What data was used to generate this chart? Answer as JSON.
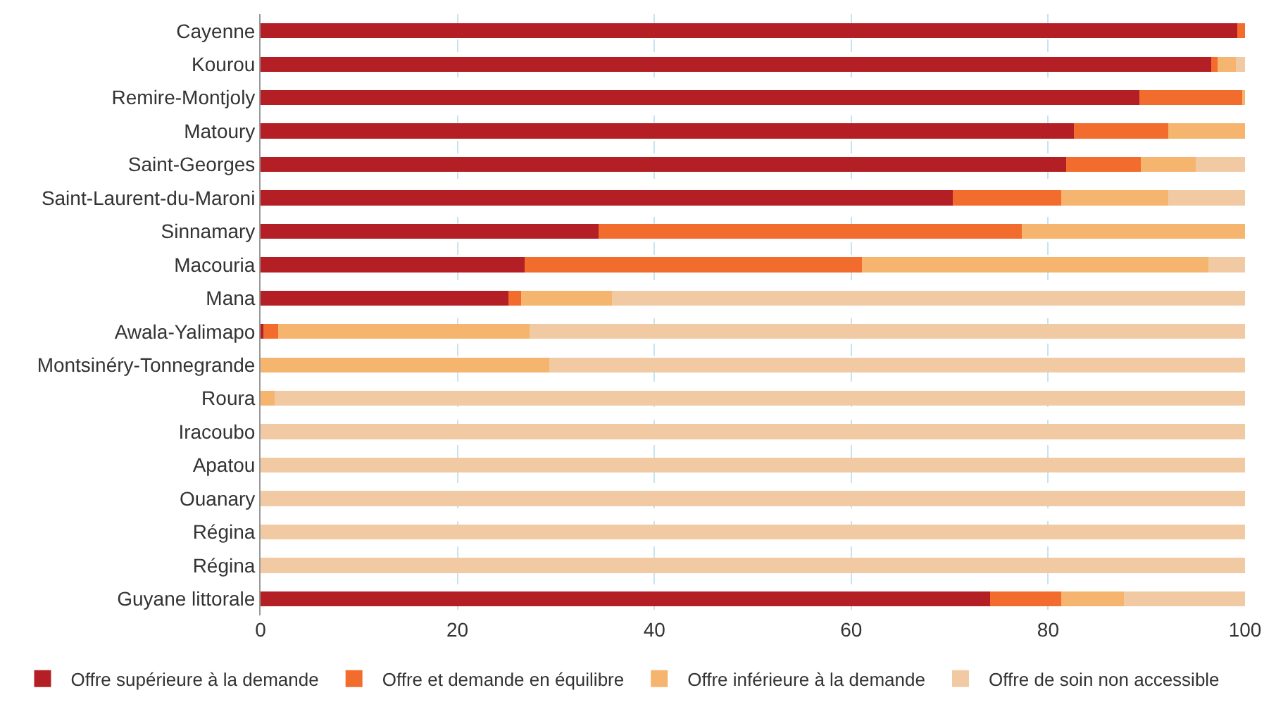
{
  "chart_data": {
    "type": "bar",
    "orientation": "horizontal",
    "stacked": true,
    "categories": [
      "Cayenne",
      "Kourou",
      "Remire-Montjoly",
      "Matoury",
      "Saint-Georges",
      "Saint-Laurent-du-Maroni",
      "Sinnamary",
      "Macouria",
      "Mana",
      "Awala-Yalimapo",
      "Montsinéry-Tonnegrande",
      "Roura",
      "Iracoubo",
      "Apatou",
      "Ouanary",
      "Régina",
      "Régina",
      "Guyane littorale"
    ],
    "series": [
      {
        "name": "Offre supérieure à la demande",
        "color": "#b31f24",
        "values": [
          99.2,
          96.6,
          89.3,
          82.6,
          81.8,
          70.3,
          34.3,
          26.8,
          25.2,
          0.3,
          0,
          0,
          0,
          0,
          0,
          0,
          0,
          74.1
        ]
      },
      {
        "name": "Offre et demande en équilibre",
        "color": "#f26c2d",
        "values": [
          0.8,
          0.6,
          10.4,
          9.6,
          7.6,
          11.0,
          43.0,
          34.3,
          1.3,
          1.5,
          0,
          0,
          0,
          0,
          0,
          0,
          0,
          7.2
        ]
      },
      {
        "name": "Offre inférieure à la demande",
        "color": "#f5b56e",
        "values": [
          0,
          1.9,
          0.3,
          7.8,
          5.6,
          10.9,
          22.7,
          35.2,
          9.2,
          25.5,
          29.3,
          1.4,
          0,
          0,
          0,
          0,
          0,
          6.4
        ]
      },
      {
        "name": "Offre de soin non accessible",
        "color": "#f1caa4",
        "values": [
          0,
          0.9,
          0,
          0,
          5.0,
          7.8,
          0,
          3.7,
          64.3,
          72.7,
          70.7,
          98.6,
          100,
          100,
          100,
          100,
          100,
          12.3
        ]
      }
    ],
    "xlim": [
      0,
      100
    ],
    "xticks": [
      0,
      20,
      40,
      60,
      80,
      100
    ],
    "grid": "x",
    "legend": "bottom"
  }
}
